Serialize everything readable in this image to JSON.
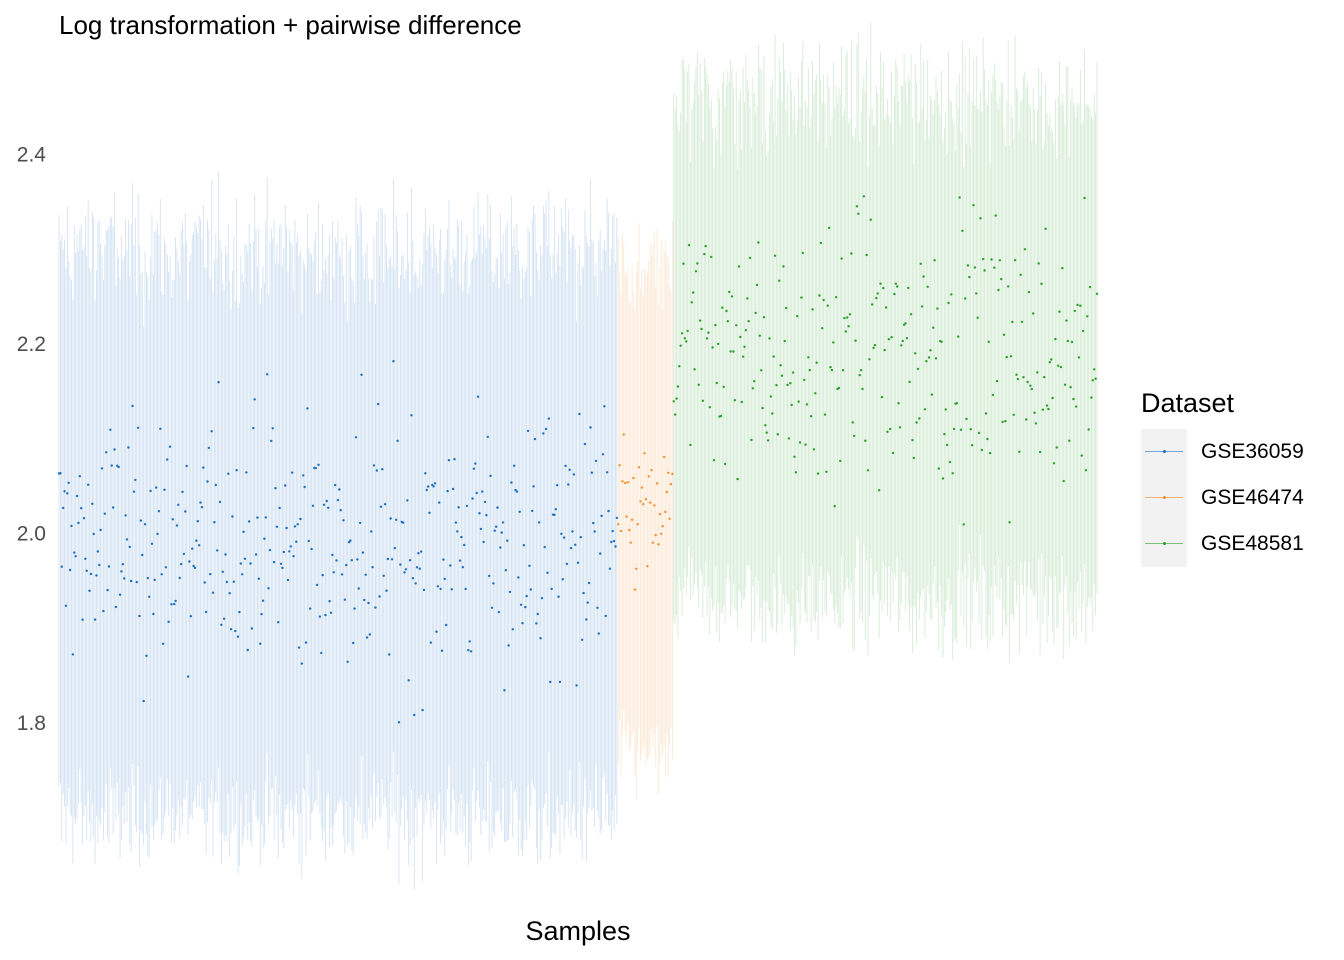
{
  "chart_data": {
    "type": "scatter",
    "title": "Log transformation + pairwise difference",
    "xlabel": "Samples",
    "ylabel": "",
    "ylim": [
      1.65,
      2.5
    ],
    "yticks": [
      "1.8",
      "2.0",
      "2.2",
      "2.4"
    ],
    "ytick_values": [
      1.8,
      2.0,
      2.2,
      2.4
    ],
    "grid": false,
    "legend": {
      "title": "Dataset",
      "placement": "right",
      "entries": [
        "GSE36059",
        "GSE46474",
        "GSE48581"
      ]
    },
    "series": [
      {
        "name": "GSE36059",
        "color": "#1f6fc1",
        "n_samples": 403,
        "point_mean": 1.99,
        "point_spread": 0.09,
        "range_lower": 1.7,
        "range_upper": 2.3,
        "markers": "median point with vertical min-max range line per sample"
      },
      {
        "name": "GSE46474",
        "color": "#f28e2b",
        "n_samples": 40,
        "point_mean": 2.02,
        "point_spread": 0.05,
        "range_lower": 1.76,
        "range_upper": 2.28,
        "markers": "median point with vertical min-max range line per sample"
      },
      {
        "name": "GSE48581",
        "color": "#2ca02c",
        "n_samples": 306,
        "point_mean": 2.19,
        "point_spread": 0.09,
        "range_lower": 1.93,
        "range_upper": 2.46,
        "markers": "median point with vertical min-max range line per sample"
      }
    ]
  }
}
